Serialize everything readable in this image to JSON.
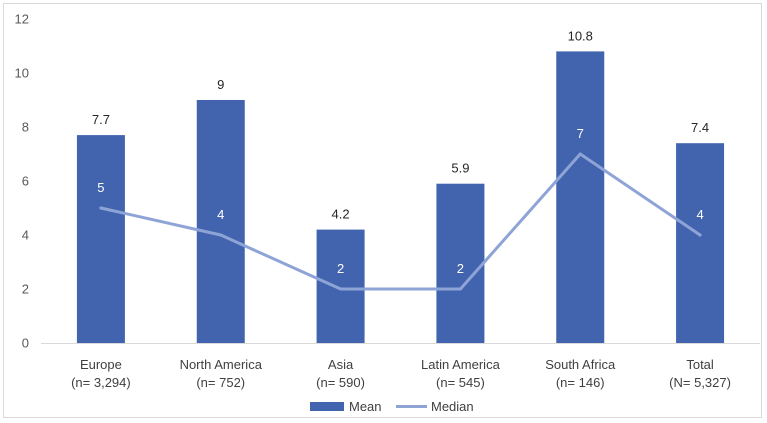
{
  "chart_data": {
    "type": "bar",
    "categories": [
      [
        "Europe",
        "(n= 3,294)"
      ],
      [
        "North America",
        "(n= 752)"
      ],
      [
        "Asia",
        "(n= 590)"
      ],
      [
        "Latin America",
        "(n= 545)"
      ],
      [
        "South Africa",
        "(n= 146)"
      ],
      [
        "Total",
        "(N= 5,327)"
      ]
    ],
    "series": [
      {
        "name": "Mean",
        "type": "bar",
        "color": "#4264ae",
        "values": [
          7.7,
          9,
          4.2,
          5.9,
          10.8,
          7.4
        ],
        "labels": [
          "7.7",
          "9",
          "4.2",
          "5.9",
          "10.8",
          "7.4"
        ]
      },
      {
        "name": "Median",
        "type": "line",
        "color": "#8fa4d6",
        "values": [
          5,
          4,
          2,
          2,
          7,
          4
        ],
        "labels": [
          "5",
          "4",
          "2",
          "2",
          "7",
          "4"
        ]
      }
    ],
    "ylim": [
      0,
      12
    ],
    "yticks": [
      0,
      2,
      4,
      6,
      8,
      10,
      12
    ],
    "grid": false,
    "legend": "bottom"
  }
}
